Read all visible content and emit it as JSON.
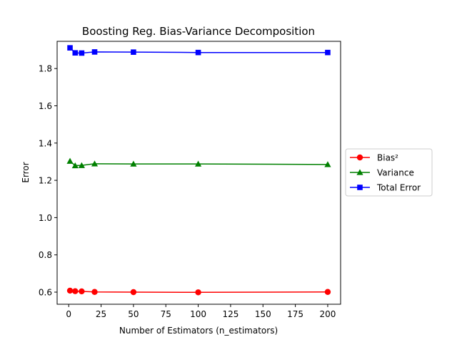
{
  "chart_data": {
    "type": "line",
    "title": "Boosting Reg. Bias-Variance Decomposition",
    "xlabel": "Number of Estimators (n_estimators)",
    "ylabel": "Error",
    "xlim": [
      -8.95,
      209.95
    ],
    "ylim": [
      0.535,
      1.946
    ],
    "xticks": [
      0,
      25,
      50,
      75,
      100,
      125,
      150,
      175,
      200
    ],
    "xtick_labels": [
      "0",
      "25",
      "50",
      "75",
      "100",
      "125",
      "150",
      "175",
      "200"
    ],
    "yticks": [
      0.6,
      0.8,
      1.0,
      1.2,
      1.4,
      1.6,
      1.8
    ],
    "ytick_labels": [
      "0.6",
      "0.8",
      "1.0",
      "1.2",
      "1.4",
      "1.6",
      "1.8"
    ],
    "grid": false,
    "legend_position": "outside-right",
    "x": [
      1,
      5,
      10,
      20,
      50,
      100,
      200
    ],
    "series": [
      {
        "name": "Bias²",
        "color": "#ff0000",
        "marker": "circle",
        "values": [
          0.608,
          0.605,
          0.604,
          0.601,
          0.6,
          0.599,
          0.601
        ]
      },
      {
        "name": "Variance",
        "color": "#008000",
        "marker": "triangle",
        "values": [
          1.303,
          1.279,
          1.28,
          1.289,
          1.288,
          1.288,
          1.285
        ]
      },
      {
        "name": "Total Error",
        "color": "#0000ff",
        "marker": "square",
        "values": [
          1.911,
          1.884,
          1.883,
          1.889,
          1.888,
          1.886,
          1.886
        ]
      }
    ]
  }
}
